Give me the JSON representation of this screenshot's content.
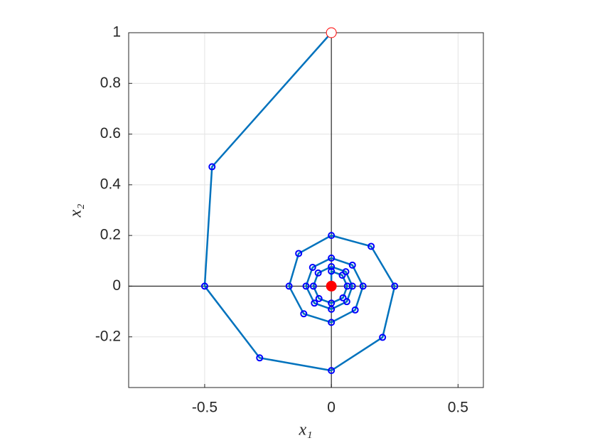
{
  "chart_data": {
    "type": "line",
    "xlabel": "x₁",
    "ylabel": "x₂",
    "x": [
      0,
      -0.471,
      -0.5,
      -0.283,
      0,
      0.202,
      0.25,
      0.157,
      0,
      -0.129,
      -0.167,
      -0.109,
      0,
      0.094,
      0.125,
      0.083,
      0,
      -0.074,
      -0.1,
      -0.067,
      0,
      0.061,
      0.083,
      0.057,
      0,
      -0.052,
      -0.071,
      -0.049,
      0,
      0.046,
      0.063,
      0.043,
      0,
      0
    ],
    "y": [
      1,
      0.471,
      0,
      -0.283,
      -0.333,
      -0.202,
      0,
      0.157,
      0.2,
      0.129,
      0,
      -0.109,
      -0.143,
      -0.094,
      0,
      0.083,
      0.111,
      0.074,
      0,
      -0.067,
      -0.091,
      -0.061,
      0,
      0.057,
      0.077,
      0.052,
      0,
      -0.049,
      -0.067,
      -0.046,
      0,
      0.043,
      0.059,
      0
    ],
    "color": "#0072bd",
    "marker_color": "#0000ff",
    "start_color": "#ff0000",
    "end_color": "#ff0000",
    "xlim": [
      -0.8,
      0.6
    ],
    "ylim": [
      -0.4,
      1
    ],
    "xticks": [
      -0.5,
      0,
      0.5
    ],
    "yticks": [
      -0.2,
      0,
      0.2,
      0.4,
      0.6,
      0.8,
      1
    ],
    "grid": true
  }
}
